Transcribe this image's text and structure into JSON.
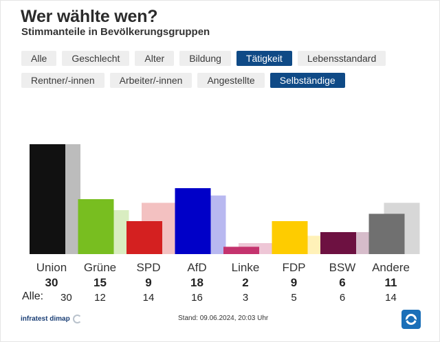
{
  "header": {
    "title": "Wer wählte wen?",
    "subtitle": "Stimmanteile in Bevölkerungsgruppen"
  },
  "tabs_primary": [
    {
      "label": "Alle",
      "active": false
    },
    {
      "label": "Geschlecht",
      "active": false
    },
    {
      "label": "Alter",
      "active": false
    },
    {
      "label": "Bildung",
      "active": false
    },
    {
      "label": "Tätigkeit",
      "active": true
    },
    {
      "label": "Lebensstandard",
      "active": false
    }
  ],
  "tabs_secondary": [
    {
      "label": "Rentner/-innen",
      "active": false
    },
    {
      "label": "Arbeiter/-innen",
      "active": false
    },
    {
      "label": "Angestellte",
      "active": false
    },
    {
      "label": "Selbständige",
      "active": true
    }
  ],
  "chart_data": {
    "type": "bar",
    "categories": [
      "Union",
      "Grüne",
      "SPD",
      "AfD",
      "Linke",
      "FDP",
      "BSW",
      "Andere"
    ],
    "series": [
      {
        "values": [
          30,
          15,
          9,
          18,
          2,
          9,
          6,
          11
        ]
      },
      {
        "values": [
          30,
          12,
          14,
          16,
          3,
          5,
          6,
          14
        ]
      }
    ],
    "colors": [
      "#111111",
      "#78be20",
      "#d42020",
      "#0000c8",
      "#c4336e",
      "#fecc00",
      "#6d1141",
      "#707070"
    ],
    "ylim": [
      0,
      30
    ],
    "comparison_prefix": "Alle:"
  },
  "footer": {
    "source": "infratest dimap",
    "stand": "Stand: 09.06.2024, 20:03 Uhr"
  },
  "icons": {
    "source_logo": "infratest-dimap-logo-icon",
    "broadcaster_logo": "tagesschau-logo-icon"
  }
}
